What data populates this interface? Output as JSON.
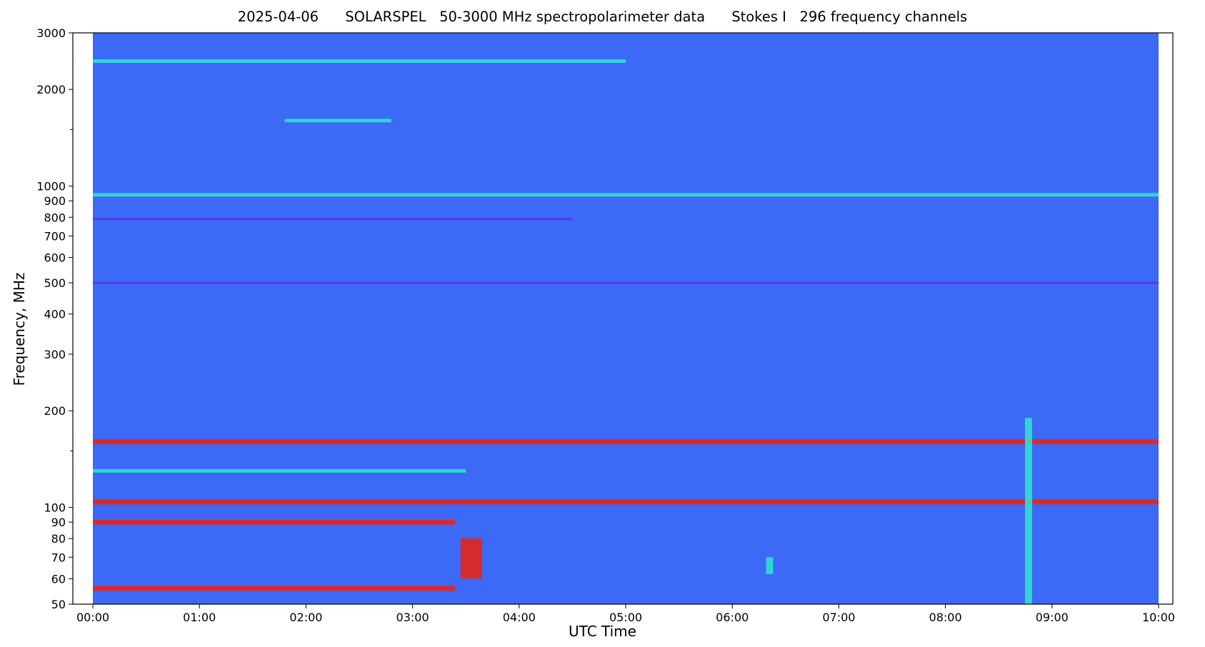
{
  "chart_data": {
    "type": "heatmap",
    "title": "2025-04-06      SOLARSPEL   50-3000 MHz spectropolarimeter data      Stokes I   296 frequency channels",
    "xlabel": "UTC Time",
    "ylabel": "Frequency, MHz",
    "x_ticks": [
      "00:00",
      "01:00",
      "02:00",
      "03:00",
      "04:00",
      "05:00",
      "06:00",
      "07:00",
      "08:00",
      "09:00",
      "10:00"
    ],
    "x_range_hours": [
      0,
      10
    ],
    "y_scale": "log",
    "y_range_mhz": [
      50,
      3000
    ],
    "y_ticks": [
      {
        "value": 50,
        "label": "50"
      },
      {
        "value": 60,
        "label": "60"
      },
      {
        "value": 70,
        "label": "70"
      },
      {
        "value": 80,
        "label": "80"
      },
      {
        "value": 90,
        "label": "90"
      },
      {
        "value": 100,
        "label": "100"
      },
      {
        "value": 200,
        "label": "200"
      },
      {
        "value": 300,
        "label": "300"
      },
      {
        "value": 400,
        "label": "400"
      },
      {
        "value": 500,
        "label": "500"
      },
      {
        "value": 600,
        "label": "600"
      },
      {
        "value": 700,
        "label": "700"
      },
      {
        "value": 800,
        "label": "800"
      },
      {
        "value": 900,
        "label": "900"
      },
      {
        "value": 1000,
        "label": "1000"
      },
      {
        "value": 2000,
        "label": "2000"
      },
      {
        "value": 3000,
        "label": "3000"
      }
    ],
    "y_minor_ticks": [
      150,
      1500
    ],
    "colormap": "rainbow",
    "colors": {
      "background": "#3c69f5",
      "low": "#5a2dee",
      "mid": "#2fe0d0",
      "high": "#e8241a"
    },
    "grid": false,
    "features": [
      {
        "type": "band",
        "freq_mhz": 56,
        "t_start": 0.0,
        "t_end": 3.4,
        "level": "high"
      },
      {
        "type": "band",
        "freq_mhz": 90,
        "t_start": 0.0,
        "t_end": 3.4,
        "level": "high"
      },
      {
        "type": "band",
        "freq_mhz": 104,
        "t_start": 0.0,
        "t_end": 10.0,
        "level": "high"
      },
      {
        "type": "band",
        "freq_mhz": 130,
        "t_start": 0.0,
        "t_end": 3.5,
        "level": "mid"
      },
      {
        "type": "band",
        "freq_mhz": 160,
        "t_start": 0.0,
        "t_end": 10.0,
        "level": "high"
      },
      {
        "type": "band",
        "freq_mhz": 940,
        "t_start": 0.0,
        "t_end": 10.0,
        "level": "mid"
      },
      {
        "type": "band",
        "freq_mhz": 1600,
        "t_start": 1.8,
        "t_end": 2.8,
        "level": "mid"
      },
      {
        "type": "band",
        "freq_mhz": 2450,
        "t_start": 0.0,
        "t_end": 5.0,
        "level": "mid"
      },
      {
        "type": "band",
        "freq_mhz": 790,
        "t_start": 0.0,
        "t_end": 4.5,
        "level": "low"
      },
      {
        "type": "band",
        "freq_mhz": 500,
        "t_start": 0.0,
        "t_end": 10.0,
        "level": "low"
      },
      {
        "type": "burst",
        "t": 3.55,
        "f_low": 60,
        "f_high": 80,
        "level": "high"
      },
      {
        "type": "burst",
        "t": 6.35,
        "f_low": 62,
        "f_high": 70,
        "level": "mid"
      },
      {
        "type": "burst",
        "t": 8.78,
        "f_low": 50,
        "f_high": 190,
        "level": "mid"
      }
    ]
  }
}
